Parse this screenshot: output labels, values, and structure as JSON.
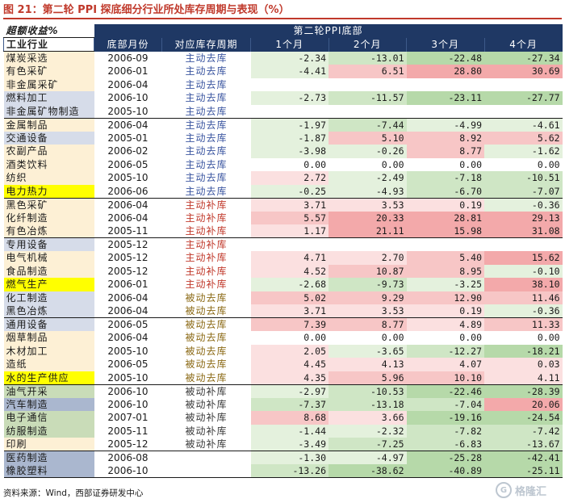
{
  "title": "图 21：第二轮 PPI 探底细分行业所处库存周期与表现（%）",
  "header": {
    "top_left": "超额收益%",
    "group_label": "第二轮PPI底部",
    "columns": [
      "工业行业",
      "底部月份",
      "对应库存周期",
      "1个月",
      "2个月",
      "3个月",
      "4个月"
    ]
  },
  "rows": [
    {
      "industry": "煤炭采选",
      "date": "2006-09",
      "cycle": "主动去库",
      "m1": "-2.34",
      "m2": "-13.01",
      "m3": "-22.48",
      "m4": "-27.34"
    },
    {
      "industry": "有色采矿",
      "date": "2006-01",
      "cycle": "主动去库",
      "m1": "-4.41",
      "m2": "6.51",
      "m3": "28.80",
      "m4": "30.69"
    },
    {
      "industry": "非金属采矿",
      "date": "2006-04",
      "cycle": "主动去库",
      "m1": "",
      "m2": "",
      "m3": "",
      "m4": ""
    },
    {
      "industry": "燃料加工",
      "date": "2006-10",
      "cycle": "主动去库",
      "m1": "-2.73",
      "m2": "-11.57",
      "m3": "-23.11",
      "m4": "-27.77"
    },
    {
      "industry": "非金属矿物制造",
      "date": "2005-10",
      "cycle": "主动去库",
      "m1": "",
      "m2": "",
      "m3": "",
      "m4": ""
    },
    {
      "industry": "金属制品",
      "date": "2006-04",
      "cycle": "主动去库",
      "m1": "-1.97",
      "m2": "-7.44",
      "m3": "-4.99",
      "m4": "-4.61"
    },
    {
      "industry": "交通设备",
      "date": "2005-01",
      "cycle": "主动去库",
      "m1": "-1.87",
      "m2": "5.10",
      "m3": "8.92",
      "m4": "5.62"
    },
    {
      "industry": "农副产品",
      "date": "2006-02",
      "cycle": "主动去库",
      "m1": "-3.98",
      "m2": "-0.26",
      "m3": "8.77",
      "m4": "-1.62"
    },
    {
      "industry": "酒类饮料",
      "date": "2006-05",
      "cycle": "主动去库",
      "m1": "0.00",
      "m2": "0.00",
      "m3": "0.00",
      "m4": "0.00"
    },
    {
      "industry": "纺织",
      "date": "2005-10",
      "cycle": "主动去库",
      "m1": "2.72",
      "m2": "-2.49",
      "m3": "-7.18",
      "m4": "-10.51"
    },
    {
      "industry": "电力热力",
      "date": "2006-06",
      "cycle": "主动去库",
      "m1": "-0.25",
      "m2": "-4.93",
      "m3": "-6.70",
      "m4": "-7.07"
    },
    {
      "industry": "黑色采矿",
      "date": "2006-04",
      "cycle": "主动补库",
      "m1": "3.71",
      "m2": "3.53",
      "m3": "0.19",
      "m4": "-0.36"
    },
    {
      "industry": "化纤制造",
      "date": "2006-04",
      "cycle": "主动补库",
      "m1": "5.57",
      "m2": "20.33",
      "m3": "28.81",
      "m4": "29.13"
    },
    {
      "industry": "有色冶炼",
      "date": "2005-11",
      "cycle": "主动补库",
      "m1": "1.17",
      "m2": "21.11",
      "m3": "15.98",
      "m4": "31.08"
    },
    {
      "industry": "专用设备",
      "date": "2005-12",
      "cycle": "主动补库",
      "m1": "",
      "m2": "",
      "m3": "",
      "m4": ""
    },
    {
      "industry": "电气机械",
      "date": "2005-12",
      "cycle": "主动补库",
      "m1": "4.71",
      "m2": "2.70",
      "m3": "5.40",
      "m4": "15.62"
    },
    {
      "industry": "食品制造",
      "date": "2005-12",
      "cycle": "主动补库",
      "m1": "4.52",
      "m2": "10.87",
      "m3": "8.95",
      "m4": "-0.10"
    },
    {
      "industry": "燃气生产",
      "date": "2006-01",
      "cycle": "主动补库",
      "m1": "-2.68",
      "m2": "-9.73",
      "m3": "-3.25",
      "m4": "38.10"
    },
    {
      "industry": "化工制造",
      "date": "2006-04",
      "cycle": "被动去库",
      "m1": "5.02",
      "m2": "9.29",
      "m3": "12.90",
      "m4": "11.46"
    },
    {
      "industry": "黑色冶炼",
      "date": "2006-04",
      "cycle": "被动去库",
      "m1": "3.71",
      "m2": "3.53",
      "m3": "0.19",
      "m4": "-0.36"
    },
    {
      "industry": "通用设备",
      "date": "2006-05",
      "cycle": "被动去库",
      "m1": "7.39",
      "m2": "8.77",
      "m3": "4.89",
      "m4": "11.33"
    },
    {
      "industry": "烟草制品",
      "date": "2006-04",
      "cycle": "被动去库",
      "m1": "0.00",
      "m2": "0.00",
      "m3": "0.00",
      "m4": "0.00"
    },
    {
      "industry": "木材加工",
      "date": "2005-10",
      "cycle": "被动去库",
      "m1": "2.05",
      "m2": "-3.65",
      "m3": "-12.27",
      "m4": "-18.21"
    },
    {
      "industry": "造纸",
      "date": "2006-05",
      "cycle": "被动去库",
      "m1": "4.45",
      "m2": "4.13",
      "m3": "4.07",
      "m4": "0.03"
    },
    {
      "industry": "水的生产供应",
      "date": "2005-10",
      "cycle": "被动去库",
      "m1": "4.35",
      "m2": "5.96",
      "m3": "10.10",
      "m4": "4.11"
    },
    {
      "industry": "油气开采",
      "date": "2006-10",
      "cycle": "被动补库",
      "m1": "-2.97",
      "m2": "-10.53",
      "m3": "-22.46",
      "m4": "-28.39"
    },
    {
      "industry": "汽车制造",
      "date": "2006-10",
      "cycle": "被动补库",
      "m1": "-7.37",
      "m2": "-13.18",
      "m3": "-7.04",
      "m4": "20.06"
    },
    {
      "industry": "电子通信",
      "date": "2007-01",
      "cycle": "被动补库",
      "m1": "8.68",
      "m2": "3.66",
      "m3": "-19.16",
      "m4": "-24.54"
    },
    {
      "industry": "纺服制造",
      "date": "2005-11",
      "cycle": "被动补库",
      "m1": "-1.44",
      "m2": "-2.32",
      "m3": "-7.82",
      "m4": "-7.42"
    },
    {
      "industry": "印刷",
      "date": "2005-12",
      "cycle": "被动补库",
      "m1": "-3.49",
      "m2": "-7.25",
      "m3": "-6.83",
      "m4": "-13.67"
    },
    {
      "industry": "医药制造",
      "date": "2006-08",
      "cycle": "",
      "m1": "-1.30",
      "m2": "-4.97",
      "m3": "-25.28",
      "m4": "-42.41"
    },
    {
      "industry": "橡胶塑料",
      "date": "2006-10",
      "cycle": "",
      "m1": "-13.26",
      "m2": "-38.62",
      "m3": "-40.89",
      "m4": "-25.11"
    }
  ],
  "source": "资料来源：Wind，西部证券研发中心",
  "watermark": "格隆汇",
  "colors": {
    "title_red": "#c0392b",
    "header_navy": "#1f3864",
    "cycle_depleting": "#3a55a0",
    "cycle_restocking": "#c0392b",
    "cycle_passive": "#8b6914"
  }
}
